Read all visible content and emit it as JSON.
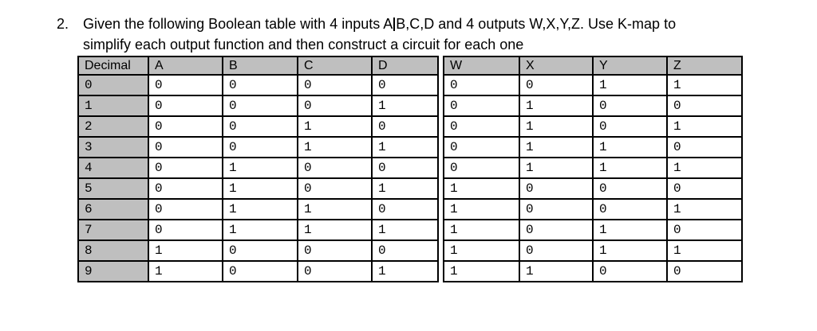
{
  "question": {
    "number": "2.",
    "line1_before_cursor": "Given the following Boolean table with 4 inputs A",
    "line1_after_cursor": "B,C,D and 4 outputs W,X,Y,Z. Use K-map to",
    "line2": "simplify each output function and then construct a circuit for each one"
  },
  "table": {
    "input_headers": [
      "Decimal",
      "A",
      "B",
      "C",
      "D"
    ],
    "output_headers": [
      "W",
      "X",
      "Y",
      "Z"
    ],
    "rows": [
      {
        "decimal": "0",
        "inputs": [
          "0",
          "0",
          "0",
          "0"
        ],
        "outputs": [
          "0",
          "0",
          "1",
          "1"
        ]
      },
      {
        "decimal": "1",
        "inputs": [
          "0",
          "0",
          "0",
          "1"
        ],
        "outputs": [
          "0",
          "1",
          "0",
          "0"
        ]
      },
      {
        "decimal": "2",
        "inputs": [
          "0",
          "0",
          "1",
          "0"
        ],
        "outputs": [
          "0",
          "1",
          "0",
          "1"
        ]
      },
      {
        "decimal": "3",
        "inputs": [
          "0",
          "0",
          "1",
          "1"
        ],
        "outputs": [
          "0",
          "1",
          "1",
          "0"
        ]
      },
      {
        "decimal": "4",
        "inputs": [
          "0",
          "1",
          "0",
          "0"
        ],
        "outputs": [
          "0",
          "1",
          "1",
          "1"
        ]
      },
      {
        "decimal": "5",
        "inputs": [
          "0",
          "1",
          "0",
          "1"
        ],
        "outputs": [
          "1",
          "0",
          "0",
          "0"
        ]
      },
      {
        "decimal": "6",
        "inputs": [
          "0",
          "1",
          "1",
          "0"
        ],
        "outputs": [
          "1",
          "0",
          "0",
          "1"
        ]
      },
      {
        "decimal": "7",
        "inputs": [
          "0",
          "1",
          "1",
          "1"
        ],
        "outputs": [
          "1",
          "0",
          "1",
          "0"
        ]
      },
      {
        "decimal": "8",
        "inputs": [
          "1",
          "0",
          "0",
          "0"
        ],
        "outputs": [
          "1",
          "0",
          "1",
          "1"
        ]
      },
      {
        "decimal": "9",
        "inputs": [
          "1",
          "0",
          "0",
          "1"
        ],
        "outputs": [
          "1",
          "1",
          "0",
          "0"
        ]
      }
    ],
    "colors": {
      "header_bg": "#bfbfbf",
      "border": "#000000",
      "page_bg": "#ffffff"
    }
  }
}
